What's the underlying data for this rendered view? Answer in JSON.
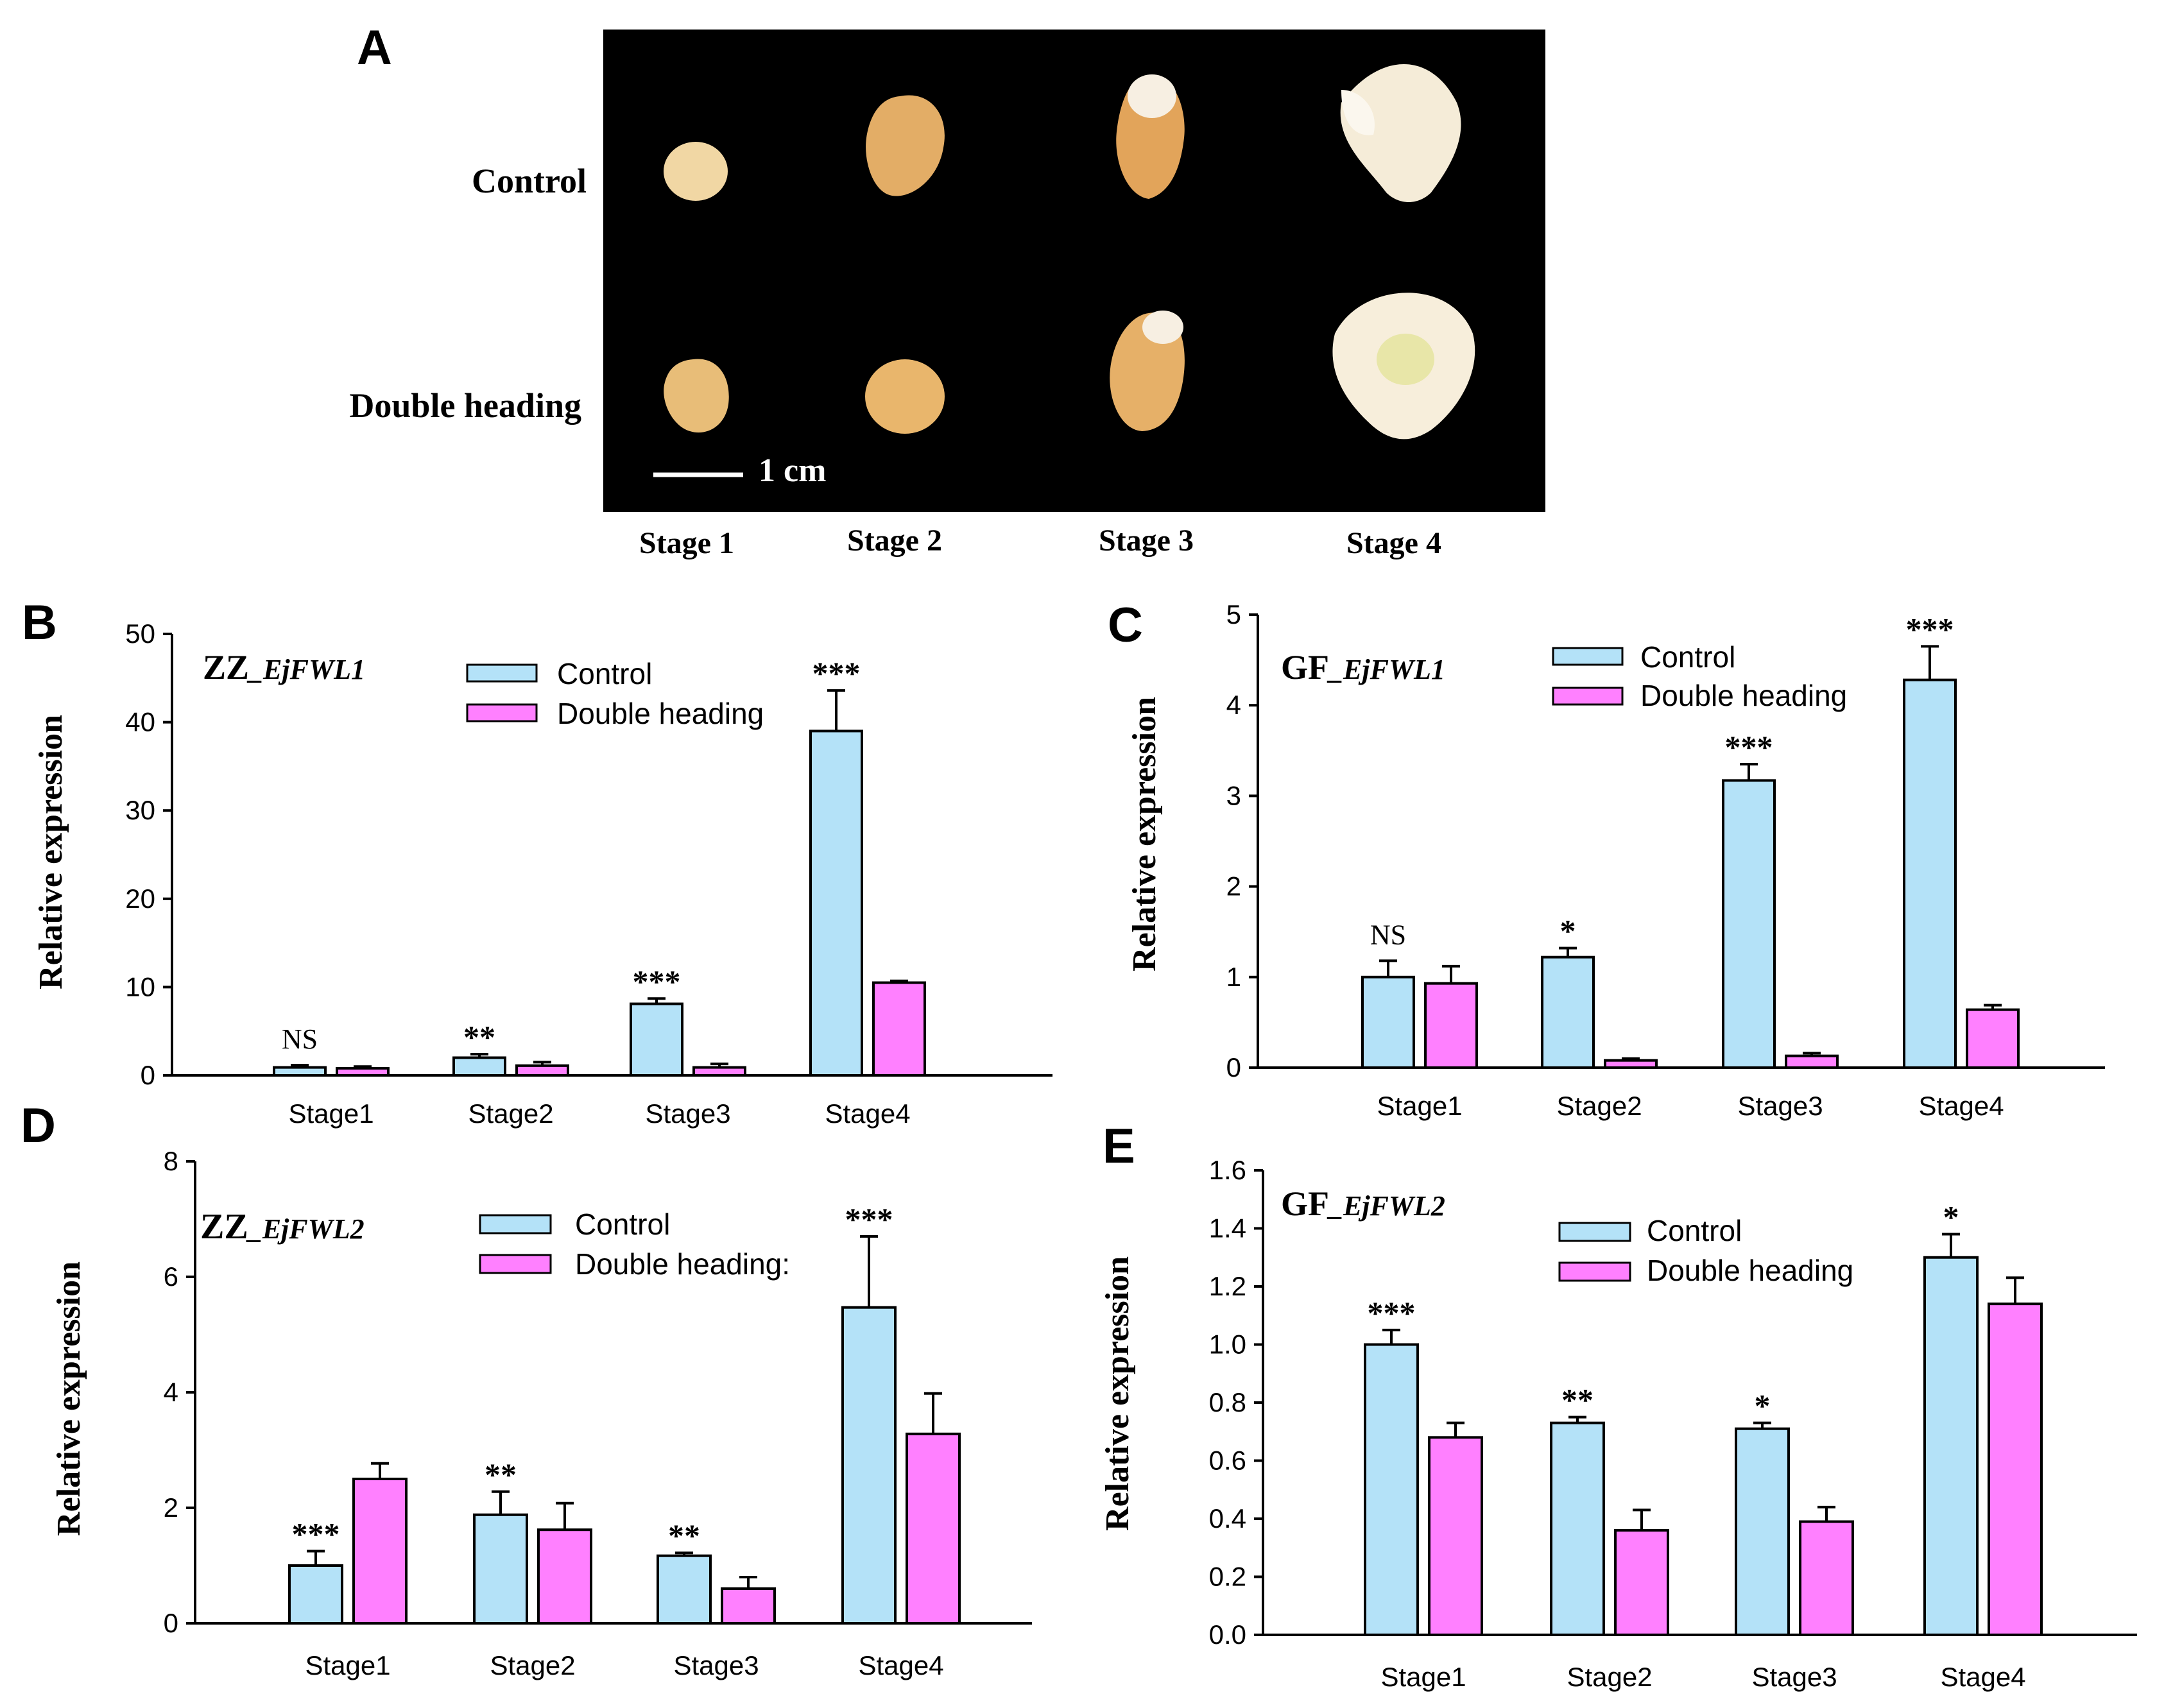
{
  "panel_a": {
    "letter": "A",
    "row_labels": [
      "Control",
      "Double heading"
    ],
    "stage_labels": [
      "Stage 1",
      "Stage 2",
      "Stage 3",
      "Stage 4"
    ],
    "scale_bar_label": "1 cm",
    "background_color": "#000000",
    "specimen_color": "#e8c690"
  },
  "colors": {
    "control": "#b4e2f8",
    "double_heading": "#ff80ff",
    "stroke": "#000000"
  },
  "chart_data": [
    {
      "panel": "B",
      "type": "bar",
      "title_prefix": "ZZ",
      "title_gene": "_EjFWL1",
      "ylabel": "Relative expression",
      "xlabel": "",
      "ylim": [
        0,
        50
      ],
      "yticks": [
        0,
        10,
        20,
        30,
        40,
        50
      ],
      "ytick_labels": [
        "0",
        "10",
        "20",
        "30",
        "40",
        "50"
      ],
      "categories": [
        "Stage1",
        "Stage2",
        "Stage3",
        "Stage4"
      ],
      "series": [
        {
          "name": "Control",
          "values": [
            0.9,
            2.0,
            8.1,
            39.0
          ],
          "errors": [
            0.25,
            0.4,
            0.6,
            4.6
          ]
        },
        {
          "name": "Double heading",
          "values": [
            0.8,
            1.1,
            0.9,
            10.5
          ],
          "errors": [
            0.2,
            0.4,
            0.4,
            0.2
          ]
        }
      ],
      "significance": [
        "NS",
        "**",
        "***",
        "***"
      ],
      "legend_position": "top-center"
    },
    {
      "panel": "C",
      "type": "bar",
      "title_prefix": "GF",
      "title_gene": "_EjFWL1",
      "ylabel": "Relative expression",
      "xlabel": "",
      "ylim": [
        0,
        5
      ],
      "yticks": [
        0,
        1,
        2,
        3,
        4,
        5
      ],
      "ytick_labels": [
        "0",
        "1",
        "2",
        "3",
        "4",
        "5"
      ],
      "categories": [
        "Stage1",
        "Stage2",
        "Stage3",
        "Stage4"
      ],
      "series": [
        {
          "name": "Control",
          "values": [
            1.0,
            1.22,
            3.17,
            4.28
          ],
          "errors": [
            0.18,
            0.1,
            0.18,
            0.37
          ]
        },
        {
          "name": "Double heading",
          "values": [
            0.93,
            0.08,
            0.13,
            0.64
          ],
          "errors": [
            0.19,
            0.02,
            0.03,
            0.05
          ]
        }
      ],
      "significance": [
        "NS",
        "*",
        "***",
        "***"
      ],
      "legend_position": "top-center"
    },
    {
      "panel": "D",
      "type": "bar",
      "title_prefix": "ZZ",
      "title_gene": "_EjFWL2",
      "ylabel": "Relative expression",
      "xlabel": "",
      "ylim": [
        0,
        8
      ],
      "yticks": [
        0,
        2,
        4,
        6,
        8
      ],
      "ytick_labels": [
        "0",
        "2",
        "4",
        "6",
        "8"
      ],
      "categories": [
        "Stage1",
        "Stage2",
        "Stage3",
        "Stage4"
      ],
      "series": [
        {
          "name": "Control",
          "values": [
            1.0,
            1.88,
            1.17,
            5.47
          ],
          "errors": [
            0.25,
            0.4,
            0.05,
            1.23
          ]
        },
        {
          "name": "Double heading:",
          "values": [
            2.5,
            1.62,
            0.6,
            3.28
          ],
          "errors": [
            0.27,
            0.46,
            0.2,
            0.7
          ]
        }
      ],
      "significance": [
        "***",
        "**",
        "**",
        "***"
      ],
      "legend_position": "top-center"
    },
    {
      "panel": "E",
      "type": "bar",
      "title_prefix": "GF",
      "title_gene": "_EjFWL2",
      "ylabel": "Relative expression",
      "xlabel": "",
      "ylim": [
        0,
        1.6
      ],
      "yticks": [
        0,
        0.2,
        0.4,
        0.6,
        0.8,
        1.0,
        1.2,
        1.4,
        1.6
      ],
      "ytick_labels": [
        "0.0",
        "0.2",
        "0.4",
        "0.6",
        "0.8",
        "1.0",
        "1.2",
        "1.4",
        "1.6"
      ],
      "categories": [
        "Stage1",
        "Stage2",
        "Stage3",
        "Stage4"
      ],
      "series": [
        {
          "name": "Control",
          "values": [
            1.0,
            0.73,
            0.71,
            1.3
          ],
          "errors": [
            0.05,
            0.02,
            0.02,
            0.08
          ]
        },
        {
          "name": "Double heading",
          "values": [
            0.68,
            0.36,
            0.39,
            1.14
          ],
          "errors": [
            0.05,
            0.07,
            0.05,
            0.09
          ]
        }
      ],
      "significance": [
        "***",
        "**",
        "*",
        "*"
      ],
      "legend_position": "top-center"
    }
  ]
}
